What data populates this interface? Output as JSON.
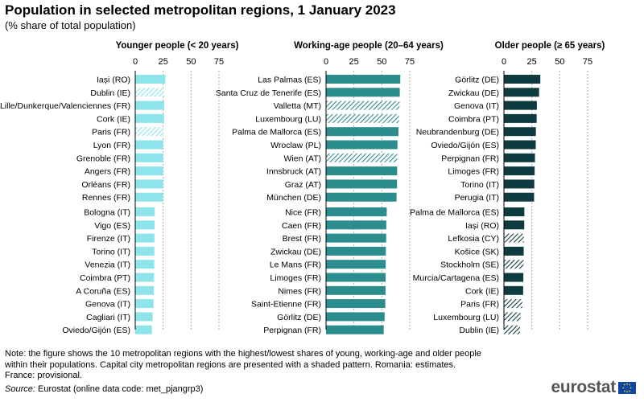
{
  "header": {
    "title": "Population in selected metropolitan regions, 1 January 2023",
    "subtitle": "(% share of total population)"
  },
  "colors": {
    "young": "#8de4ea",
    "working": "#2b8d8d",
    "older": "#0d3b40",
    "gridline": "#aaaaaa"
  },
  "footer": {
    "note": "Note: the figure shows the 10 metropolitan regions with the highest/lowest shares of young, working-age and older people within their populations. Capital city metropolitan regions are presented with a shaded pattern. Romania: estimates. France: provisional.",
    "source_label": "Source:",
    "source_text": "Eurostat (online data code: met_pjangrp3)",
    "logo_text": "eurostat",
    "logo_icon": "eu-flag-icon"
  },
  "chart_data": [
    {
      "type": "bar",
      "orientation": "horizontal",
      "title": "Younger people (< 20 years)",
      "xlim": [
        0,
        75
      ],
      "xticks": [
        0,
        25,
        50,
        75
      ],
      "grid": true,
      "groups": [
        {
          "name": "highest",
          "categories": [
            "Iași (RO)",
            "Dublin (IE)",
            "Lille/Dunkerque/Valenciennes (FR)",
            "Cork (IE)",
            "Paris (FR)",
            "Lyon (FR)",
            "Grenoble (FR)",
            "Angers (FR)",
            "Orléans (FR)",
            "Rennes (FR)"
          ],
          "values": [
            27.0,
            26.1,
            25.9,
            25.8,
            25.5,
            25.0,
            25.0,
            24.9,
            24.9,
            24.8
          ],
          "capital": [
            false,
            true,
            false,
            false,
            true,
            false,
            false,
            false,
            false,
            false
          ]
        },
        {
          "name": "lowest",
          "categories": [
            "Bologna (IT)",
            "Vigo (ES)",
            "Firenze (IT)",
            "Torino (IT)",
            "Venezia (IT)",
            "Coimbra (PT)",
            "A Coruña (ES)",
            "Genova (IT)",
            "Cagliari (IT)",
            "Oviedo/Gijón (ES)"
          ],
          "values": [
            17.5,
            17.3,
            17.2,
            17.1,
            17.0,
            16.9,
            16.7,
            16.4,
            15.6,
            14.9
          ],
          "capital": [
            false,
            false,
            false,
            false,
            false,
            false,
            false,
            false,
            false,
            false
          ]
        }
      ]
    },
    {
      "type": "bar",
      "orientation": "horizontal",
      "title": "Working-age people (20–64 years)",
      "xlim": [
        0,
        75
      ],
      "xticks": [
        0,
        25,
        50,
        75
      ],
      "grid": true,
      "groups": [
        {
          "name": "highest",
          "categories": [
            "Las Palmas (ES)",
            "Santa Cruz de Tenerife (ES)",
            "Valletta (MT)",
            "Luxembourg (LU)",
            "Palma de Mallorca (ES)",
            "Wroclaw (PL)",
            "Wien (AT)",
            "Innsbruck (AT)",
            "Graz (AT)",
            "München (DE)"
          ],
          "values": [
            66.5,
            66.1,
            65.9,
            65.4,
            64.9,
            64.0,
            63.8,
            63.7,
            63.6,
            63.2
          ],
          "capital": [
            false,
            false,
            true,
            true,
            false,
            false,
            true,
            false,
            false,
            false
          ]
        },
        {
          "name": "lowest",
          "categories": [
            "Nice (FR)",
            "Caen (FR)",
            "Brest (FR)",
            "Zwickau (DE)",
            "Le Mans (FR)",
            "Limoges (FR)",
            "Nimes (FR)",
            "Saint-Etienne (FR)",
            "Görlitz (DE)",
            "Perpignan (FR)"
          ],
          "values": [
            54.4,
            54.0,
            53.9,
            53.6,
            53.5,
            53.4,
            53.3,
            53.1,
            52.5,
            51.7
          ],
          "capital": [
            false,
            false,
            false,
            false,
            false,
            false,
            false,
            false,
            false,
            false
          ]
        }
      ]
    },
    {
      "type": "bar",
      "orientation": "horizontal",
      "title": "Older people (≥ 65 years)",
      "xlim": [
        0,
        75
      ],
      "xticks": [
        0,
        25,
        50,
        75
      ],
      "grid": true,
      "groups": [
        {
          "name": "highest",
          "categories": [
            "Görlitz (DE)",
            "Zwickau (DE)",
            "Genova (IT)",
            "Coimbra (PT)",
            "Neubrandenburg (DE)",
            "Oviedo/Gijón (ES)",
            "Perpignan (FR)",
            "Limoges (FR)",
            "Torino (IT)",
            "Perugia (IT)"
          ],
          "values": [
            32.6,
            31.5,
            29.5,
            29.3,
            28.6,
            28.5,
            27.8,
            27.5,
            27.2,
            27.0
          ],
          "capital": [
            false,
            false,
            false,
            false,
            false,
            false,
            false,
            false,
            false,
            false
          ]
        },
        {
          "name": "lowest",
          "categories": [
            "Palma de Mallorca (ES)",
            "Iași (RO)",
            "Lefkosia (CY)",
            "Košice (SK)",
            "Stockholm (SE)",
            "Murcia/Cartagena (ES)",
            "Cork (IE)",
            "Paris (FR)",
            "Luxembourg (LU)",
            "Dublin (IE)"
          ],
          "values": [
            18.3,
            18.2,
            17.8,
            17.7,
            17.6,
            17.4,
            17.2,
            16.4,
            14.9,
            14.4
          ],
          "capital": [
            false,
            false,
            true,
            false,
            true,
            false,
            false,
            true,
            true,
            true
          ]
        }
      ]
    }
  ]
}
